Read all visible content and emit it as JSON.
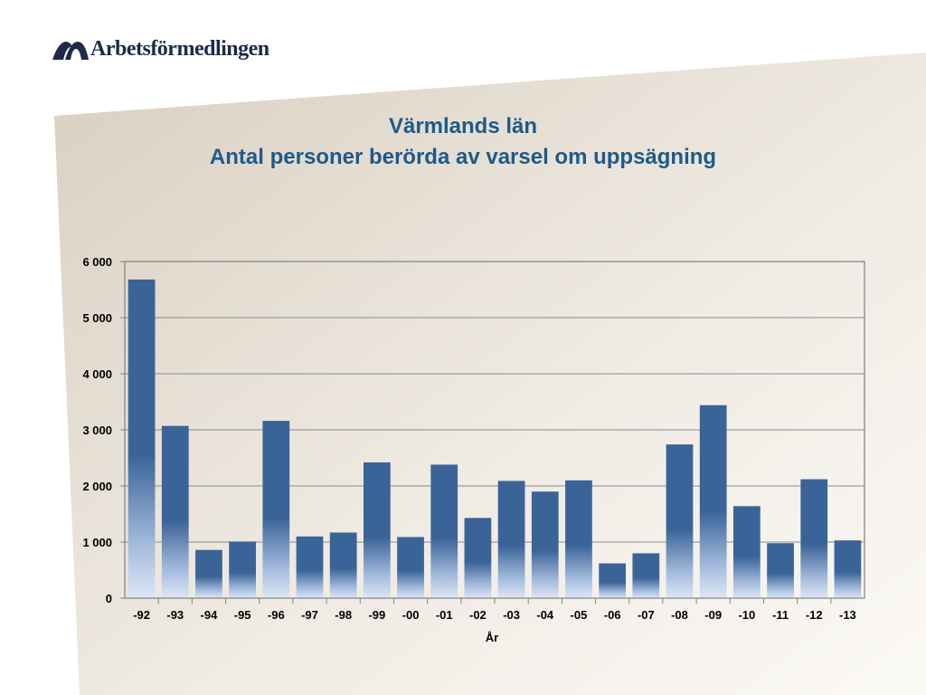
{
  "header": {
    "logo_text": "Arbetsförmedlingen",
    "logo_icon": "arbetsformedlingen-logo-icon"
  },
  "slide": {
    "title_line1": "Värmlands län",
    "title_line2": "Antal personer berörda av varsel om uppsägning"
  },
  "colors": {
    "title": "#1e5a8a",
    "bar_top": "#3a6498",
    "bar_bottom": "#dde7f6",
    "logo": "#1e2a4a"
  },
  "chart_data": {
    "type": "bar",
    "title": "",
    "xlabel": "År",
    "ylabel": "",
    "categories": [
      "-92",
      "-93",
      "-94",
      "-95",
      "-96",
      "-97",
      "-98",
      "-99",
      "-00",
      "-01",
      "-02",
      "-03",
      "-04",
      "-05",
      "-06",
      "-07",
      "-08",
      "-09",
      "-10",
      "-11",
      "-12",
      "-13"
    ],
    "values": [
      5680,
      3070,
      860,
      1010,
      3160,
      1100,
      1170,
      2420,
      1090,
      2380,
      1430,
      2090,
      1900,
      2100,
      620,
      800,
      2740,
      3440,
      1640,
      980,
      2120,
      1030
    ],
    "ylim": [
      0,
      6000
    ],
    "yticks": [
      0,
      1000,
      2000,
      3000,
      4000,
      5000,
      6000
    ],
    "ytick_labels": [
      "0",
      "1 000",
      "2 000",
      "3 000",
      "4 000",
      "5 000",
      "6 000"
    ],
    "grid": true,
    "legend": "none"
  }
}
